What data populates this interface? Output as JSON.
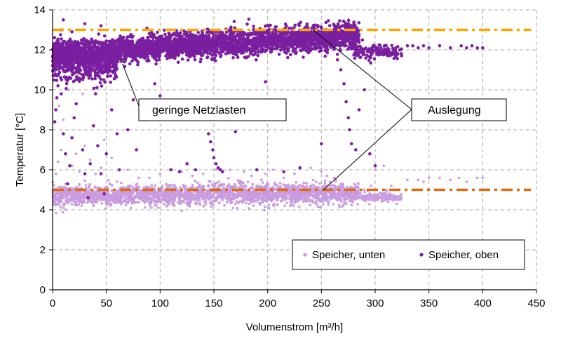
{
  "chart_data": {
    "type": "scatter",
    "xlabel": "Volumenstrom [m³/h]",
    "ylabel": "Temperatur [°C]",
    "xlim": [
      0,
      450
    ],
    "ylim": [
      0,
      14
    ],
    "x_ticks": [
      0,
      50,
      100,
      150,
      200,
      250,
      300,
      350,
      400,
      450
    ],
    "y_ticks": [
      0,
      2,
      4,
      6,
      8,
      10,
      12,
      14
    ],
    "x_tick_labels": [
      "0",
      "50",
      "100",
      "150",
      "200",
      "250",
      "300",
      "350",
      "400",
      "450"
    ],
    "y_tick_labels": [
      "0",
      "2",
      "4",
      "6",
      "8",
      "10",
      "12",
      "14"
    ],
    "grid": true,
    "legend_position": "bottom-right",
    "series": [
      {
        "name": "Speicher, unten",
        "color": "#c99be0",
        "clusters": [
          {
            "x_range": [
              0,
              285
            ],
            "y_center": 4.75,
            "y_spread": 0.45,
            "count": 2400
          },
          {
            "x_range": [
              285,
              325
            ],
            "y_center": 4.6,
            "y_spread": 0.2,
            "count": 160
          }
        ],
        "points": [
          [
            12,
            5.3
          ],
          [
            18,
            6.2
          ],
          [
            22,
            6.8
          ],
          [
            25,
            5.9
          ],
          [
            30,
            7.2
          ],
          [
            35,
            6.5
          ],
          [
            40,
            5.8
          ],
          [
            45,
            6.1
          ],
          [
            60,
            5.4
          ],
          [
            70,
            6.0
          ],
          [
            90,
            5.6
          ],
          [
            120,
            5.9
          ],
          [
            140,
            5.8
          ],
          [
            165,
            6.0
          ],
          [
            185,
            5.7
          ],
          [
            205,
            6.0
          ],
          [
            225,
            5.8
          ],
          [
            240,
            6.1
          ],
          [
            262,
            5.6
          ],
          [
            270,
            5.3
          ],
          [
            300,
            6.0
          ],
          [
            308,
            6.2
          ],
          [
            315,
            5.2
          ],
          [
            320,
            4.3
          ],
          [
            340,
            5.5
          ],
          [
            350,
            5.6
          ],
          [
            360,
            5.6
          ],
          [
            370,
            5.5
          ],
          [
            378,
            5.6
          ],
          [
            385,
            5.4
          ],
          [
            395,
            5.6
          ],
          [
            400,
            5.6
          ],
          [
            3,
            5.8
          ],
          [
            5,
            6.4
          ],
          [
            8,
            7.0
          ],
          [
            10,
            8.5
          ],
          [
            6,
            9.2
          ],
          [
            15,
            10.0
          ],
          [
            28,
            9.8
          ],
          [
            48,
            7.5
          ],
          [
            55,
            6.6
          ],
          [
            80,
            5.6
          ],
          [
            100,
            5.8
          ],
          [
            130,
            5.7
          ],
          [
            152,
            6.0
          ],
          [
            178,
            5.9
          ],
          [
            198,
            5.8
          ],
          [
            215,
            5.6
          ],
          [
            250,
            5.9
          ],
          [
            255,
            5.7
          ],
          [
            282,
            5.2
          ],
          [
            290,
            5.0
          ],
          [
            296,
            5.2
          ],
          [
            310,
            5.0
          ],
          [
            330,
            5.5
          ],
          [
            345,
            5.4
          ]
        ]
      },
      {
        "name": "Speicher, oben",
        "color": "#7a1fa0",
        "clusters": [
          {
            "x_range": [
              0,
              285
            ],
            "y_center": 12.25,
            "y_spread": 0.55,
            "count": 3400
          },
          {
            "x_range": [
              0,
              60
            ],
            "y_center": 11.3,
            "y_spread": 0.8,
            "count": 500
          },
          {
            "x_range": [
              280,
              325
            ],
            "y_center": 11.9,
            "y_spread": 0.3,
            "count": 160
          }
        ],
        "points": [
          [
            2,
            8.4
          ],
          [
            3,
            9.0
          ],
          [
            4,
            9.6
          ],
          [
            5,
            10.2
          ],
          [
            8,
            9.8
          ],
          [
            10,
            7.8
          ],
          [
            12,
            6.8
          ],
          [
            14,
            5.3
          ],
          [
            16,
            6.2
          ],
          [
            18,
            7.6
          ],
          [
            20,
            8.6
          ],
          [
            22,
            9.3
          ],
          [
            25,
            10.5
          ],
          [
            28,
            7.0
          ],
          [
            30,
            5.8
          ],
          [
            33,
            4.6
          ],
          [
            35,
            6.3
          ],
          [
            38,
            8.2
          ],
          [
            40,
            9.8
          ],
          [
            42,
            7.2
          ],
          [
            45,
            5.8
          ],
          [
            48,
            4.8
          ],
          [
            50,
            6.8
          ],
          [
            55,
            9.0
          ],
          [
            60,
            7.8
          ],
          [
            62,
            6.0
          ],
          [
            70,
            8.0
          ],
          [
            75,
            9.5
          ],
          [
            78,
            7.0
          ],
          [
            85,
            8.5
          ],
          [
            95,
            10.3
          ],
          [
            100,
            9.7
          ],
          [
            110,
            6.0
          ],
          [
            118,
            5.9
          ],
          [
            125,
            6.3
          ],
          [
            133,
            6.0
          ],
          [
            145,
            7.8
          ],
          [
            147,
            7.4
          ],
          [
            149,
            7.0
          ],
          [
            150,
            6.6
          ],
          [
            152,
            6.3
          ],
          [
            154,
            6.1
          ],
          [
            156,
            6.0
          ],
          [
            158,
            5.9
          ],
          [
            165,
            9.0
          ],
          [
            170,
            7.9
          ],
          [
            190,
            6.0
          ],
          [
            198,
            10.4
          ],
          [
            215,
            5.9
          ],
          [
            230,
            6.1
          ],
          [
            250,
            7.3
          ],
          [
            265,
            11.5
          ],
          [
            268,
            11.0
          ],
          [
            271,
            10.3
          ],
          [
            273,
            9.4
          ],
          [
            275,
            8.6
          ],
          [
            276,
            8.0
          ],
          [
            278,
            7.3
          ],
          [
            282,
            7.0
          ],
          [
            285,
            9.0
          ],
          [
            290,
            10.0
          ],
          [
            295,
            6.8
          ],
          [
            300,
            6.2
          ],
          [
            330,
            12.2
          ],
          [
            335,
            12.2
          ],
          [
            340,
            12.1
          ],
          [
            345,
            12.2
          ],
          [
            350,
            12.1
          ],
          [
            360,
            12.2
          ],
          [
            370,
            12.1
          ],
          [
            380,
            12.2
          ],
          [
            385,
            12.1
          ],
          [
            390,
            12.2
          ],
          [
            395,
            12.1
          ],
          [
            400,
            12.1
          ],
          [
            10,
            13.5
          ],
          [
            30,
            13.3
          ],
          [
            45,
            13.2
          ],
          [
            8,
            13.0
          ],
          [
            18,
            12.9
          ]
        ]
      }
    ],
    "reference_lines": [
      {
        "y": 13.0,
        "x_range": [
          0,
          445
        ],
        "color": "#ffa500",
        "style": "dash-dot"
      },
      {
        "y": 5.0,
        "x_range": [
          0,
          445
        ],
        "color": "#e06a10",
        "style": "dash-dot"
      }
    ],
    "annotations": [
      {
        "text": "geringe Netzlasten",
        "anchor_points": [
          [
            65,
            11.3
          ]
        ]
      },
      {
        "text": "Auslegung",
        "anchor_points": [
          [
            242,
            13.0
          ],
          [
            252,
            5.0
          ]
        ]
      }
    ]
  }
}
